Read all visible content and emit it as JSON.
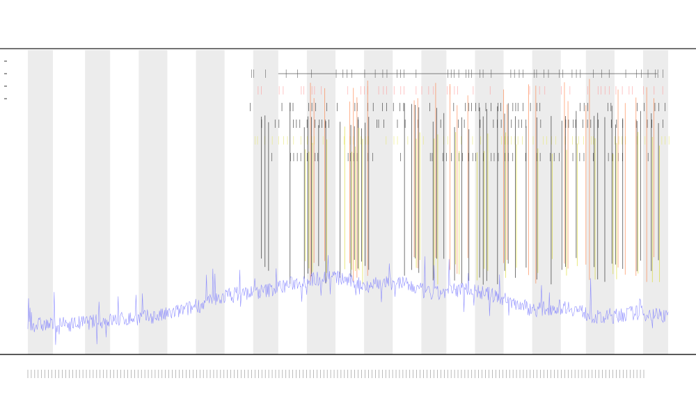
{
  "chart_data": {
    "type": "line",
    "title": "",
    "subtitle_lines": [
      "",
      ""
    ],
    "xlabel": "",
    "ylabel": "",
    "ylim": [
      0,
      1
    ],
    "x": {
      "count": 180,
      "shaded_bands": [
        [
          0,
          7
        ],
        [
          16,
          23
        ],
        [
          31,
          39
        ],
        [
          47,
          55
        ],
        [
          63,
          70
        ],
        [
          78,
          86
        ],
        [
          94,
          102
        ],
        [
          110,
          117
        ],
        [
          125,
          133
        ],
        [
          141,
          149
        ],
        [
          156,
          164
        ],
        [
          172,
          180
        ]
      ]
    },
    "series": [
      {
        "name": "",
        "color": "#7b7bff",
        "role": "noisy-line",
        "level_profile": [
          0.09,
          0.09,
          0.1,
          0.11,
          0.12,
          0.15,
          0.19,
          0.2,
          0.23,
          0.25,
          0.22,
          0.23,
          0.19,
          0.21,
          0.18,
          0.14,
          0.15,
          0.11,
          0.13,
          0.12
        ],
        "variance": 0.05
      }
    ],
    "spikes": [
      {
        "series": "",
        "color": "#ff7a3b",
        "x": [
          79,
          80,
          83,
          90,
          91,
          92,
          95,
          108,
          109,
          114,
          118,
          120,
          123,
          133,
          134,
          140,
          142,
          150,
          151,
          156,
          157,
          165,
          167,
          170,
          173,
          175
        ]
      },
      {
        "series": "",
        "color": "#111111",
        "x": [
          65,
          66,
          67,
          73,
          77,
          78,
          79,
          81,
          83,
          87,
          90,
          91,
          92,
          93,
          94,
          95,
          105,
          107,
          108,
          109,
          113,
          114,
          116,
          119,
          121,
          123,
          126,
          127,
          128,
          131,
          133,
          134,
          136,
          139,
          142,
          146,
          149,
          150,
          153,
          158,
          159,
          161,
          163,
          164,
          166,
          170,
          171,
          174,
          176
        ]
      },
      {
        "series": "",
        "color": "#d8d820",
        "x": [
          77,
          78,
          79,
          83,
          88,
          90,
          91,
          92,
          93,
          108,
          109,
          113,
          114,
          119,
          120,
          125,
          127,
          128,
          133,
          136,
          142,
          146,
          150,
          153,
          158,
          163,
          164,
          170,
          174,
          176
        ]
      }
    ],
    "upper_tracks": [
      {
        "color": "#555555",
        "label": ""
      },
      {
        "color": "#ff9999",
        "label": ""
      },
      {
        "color": "#222222",
        "label": ""
      },
      {
        "color": "#222222",
        "label": ""
      },
      {
        "color": "#e8e870",
        "label": ""
      },
      {
        "color": "#333333",
        "label": ""
      }
    ],
    "legend": {
      "placement": "top-left",
      "entries": [
        "",
        "",
        "",
        ""
      ]
    },
    "annotations": [
      "",
      ""
    ],
    "grid": false
  }
}
